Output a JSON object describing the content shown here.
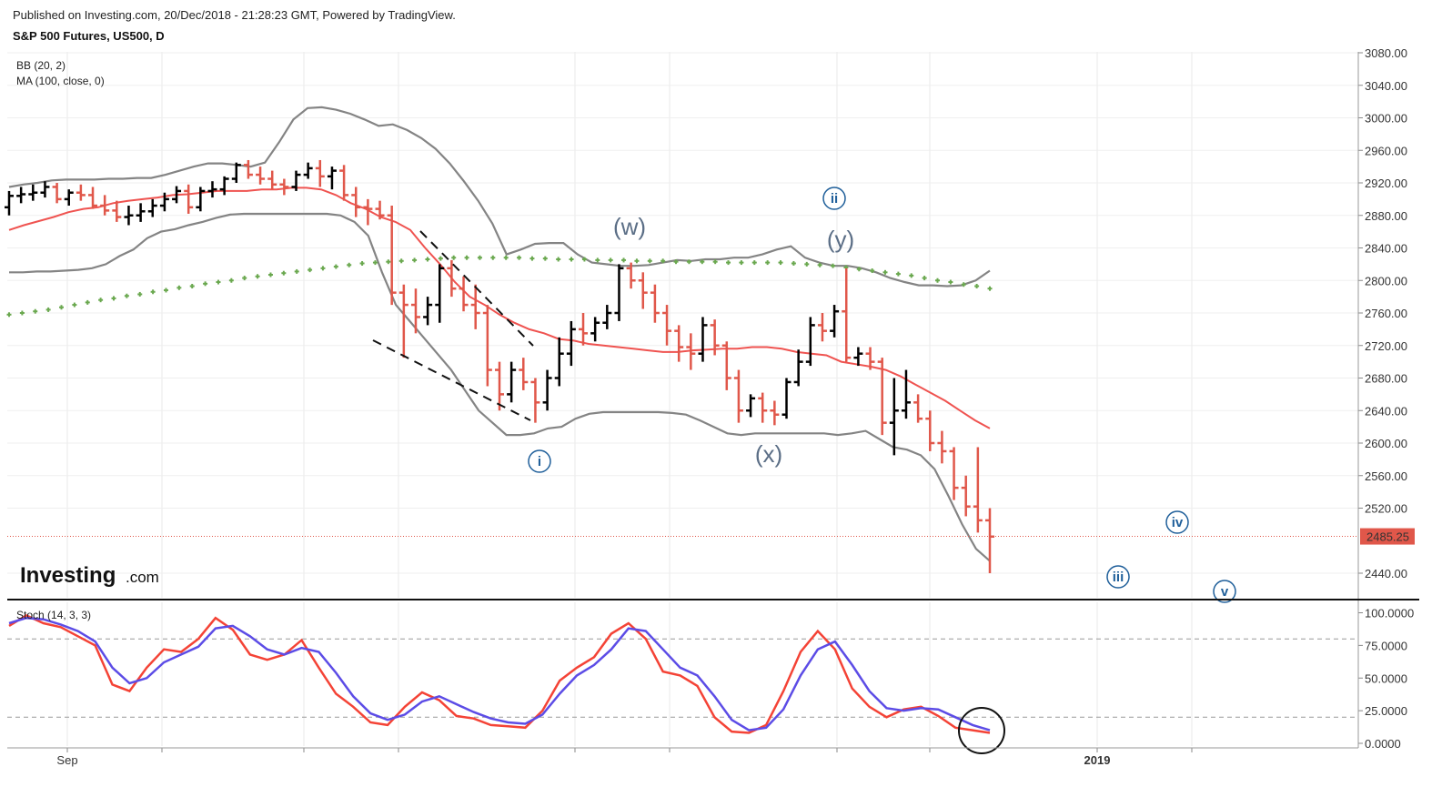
{
  "header": {
    "published": "Published on Investing.com, 20/Dec/2018 - 21:28:23 GMT, Powered by TradingView.",
    "symbol": "S&P 500 Futures, US500, D"
  },
  "legend": {
    "bb": "BB (20, 2)",
    "ma": "MA (100, close, 0)",
    "stoch": "Stoch (14, 3, 3)"
  },
  "logo": {
    "brand": "Investing",
    "suffix": ".com"
  },
  "chart_data": [
    {
      "type": "candlestick",
      "title": "S&P 500 Futures, US500, D",
      "y_ticks": [
        "3080.00",
        "3040.00",
        "3000.00",
        "2960.00",
        "2920.00",
        "2880.00",
        "2840.00",
        "2800.00",
        "2760.00",
        "2720.00",
        "2680.00",
        "2640.00",
        "2600.00",
        "2560.00",
        "2520.00",
        "2440.00"
      ],
      "ylim": [
        2430,
        3080
      ],
      "x_tick_labels": [
        "Sep",
        "2019"
      ],
      "last_price": "2485.25",
      "last_price_value": 2485.25,
      "colors": {
        "up": "#000000",
        "down": "#e0574a",
        "bb": "#848484",
        "ma100": "#6aa84f",
        "basis": "#ef5350",
        "last": "#e0574a"
      },
      "bars": [
        [
          2890,
          2910,
          2880,
          2904
        ],
        [
          2904,
          2915,
          2895,
          2906
        ],
        [
          2906,
          2918,
          2898,
          2908
        ],
        [
          2908,
          2922,
          2902,
          2915
        ],
        [
          2915,
          2920,
          2895,
          2900
        ],
        [
          2900,
          2912,
          2892,
          2908
        ],
        [
          2908,
          2918,
          2898,
          2905
        ],
        [
          2905,
          2915,
          2888,
          2892
        ],
        [
          2892,
          2905,
          2880,
          2886
        ],
        [
          2886,
          2898,
          2872,
          2878
        ],
        [
          2878,
          2892,
          2868,
          2880
        ],
        [
          2880,
          2895,
          2872,
          2885
        ],
        [
          2885,
          2900,
          2878,
          2892
        ],
        [
          2892,
          2908,
          2885,
          2900
        ],
        [
          2900,
          2916,
          2895,
          2910
        ],
        [
          2910,
          2918,
          2882,
          2890
        ],
        [
          2890,
          2915,
          2885,
          2910
        ],
        [
          2910,
          2922,
          2902,
          2912
        ],
        [
          2912,
          2928,
          2905,
          2925
        ],
        [
          2925,
          2945,
          2920,
          2942
        ],
        [
          2942,
          2948,
          2925,
          2930
        ],
        [
          2930,
          2940,
          2918,
          2925
        ],
        [
          2925,
          2935,
          2912,
          2918
        ],
        [
          2918,
          2925,
          2905,
          2915
        ],
        [
          2915,
          2935,
          2910,
          2930
        ],
        [
          2930,
          2945,
          2925,
          2938
        ],
        [
          2938,
          2948,
          2915,
          2928
        ],
        [
          2928,
          2940,
          2912,
          2935
        ],
        [
          2935,
          2942,
          2898,
          2905
        ],
        [
          2905,
          2915,
          2878,
          2890
        ],
        [
          2890,
          2900,
          2868,
          2888
        ],
        [
          2888,
          2898,
          2875,
          2880
        ],
        [
          2880,
          2892,
          2770,
          2785
        ],
        [
          2785,
          2795,
          2705,
          2770
        ],
        [
          2770,
          2790,
          2735,
          2755
        ],
        [
          2755,
          2780,
          2745,
          2770
        ],
        [
          2770,
          2820,
          2748,
          2815
        ],
        [
          2815,
          2825,
          2780,
          2790
        ],
        [
          2790,
          2805,
          2762,
          2770
        ],
        [
          2770,
          2795,
          2740,
          2760
        ],
        [
          2760,
          2770,
          2670,
          2690
        ],
        [
          2690,
          2700,
          2640,
          2660
        ],
        [
          2660,
          2700,
          2650,
          2690
        ],
        [
          2690,
          2705,
          2665,
          2675
        ],
        [
          2675,
          2680,
          2625,
          2650
        ],
        [
          2650,
          2690,
          2640,
          2680
        ],
        [
          2680,
          2730,
          2670,
          2710
        ],
        [
          2710,
          2750,
          2695,
          2740
        ],
        [
          2740,
          2760,
          2720,
          2735
        ],
        [
          2735,
          2755,
          2725,
          2748
        ],
        [
          2748,
          2770,
          2740,
          2760
        ],
        [
          2760,
          2820,
          2750,
          2815
        ],
        [
          2815,
          2822,
          2790,
          2800
        ],
        [
          2800,
          2810,
          2765,
          2785
        ],
        [
          2785,
          2795,
          2748,
          2760
        ],
        [
          2760,
          2770,
          2720,
          2738
        ],
        [
          2738,
          2745,
          2700,
          2718
        ],
        [
          2718,
          2735,
          2690,
          2710
        ],
        [
          2710,
          2755,
          2700,
          2745
        ],
        [
          2745,
          2752,
          2708,
          2720
        ],
        [
          2720,
          2725,
          2665,
          2680
        ],
        [
          2680,
          2690,
          2625,
          2640
        ],
        [
          2640,
          2660,
          2632,
          2655
        ],
        [
          2655,
          2662,
          2625,
          2640
        ],
        [
          2640,
          2652,
          2622,
          2635
        ],
        [
          2635,
          2680,
          2630,
          2675
        ],
        [
          2675,
          2715,
          2670,
          2700
        ],
        [
          2700,
          2755,
          2695,
          2745
        ],
        [
          2745,
          2760,
          2725,
          2738
        ],
        [
          2738,
          2770,
          2730,
          2762
        ],
        [
          2762,
          2815,
          2700,
          2705
        ],
        [
          2705,
          2718,
          2695,
          2710
        ],
        [
          2710,
          2718,
          2690,
          2700
        ],
        [
          2700,
          2705,
          2610,
          2625
        ],
        [
          2625,
          2680,
          2585,
          2640
        ],
        [
          2640,
          2690,
          2630,
          2650
        ],
        [
          2650,
          2660,
          2625,
          2630
        ],
        [
          2630,
          2640,
          2590,
          2600
        ],
        [
          2600,
          2615,
          2575,
          2590
        ],
        [
          2590,
          2595,
          2530,
          2545
        ],
        [
          2545,
          2560,
          2510,
          2522
        ],
        [
          2522,
          2595,
          2490,
          2505
        ],
        [
          2505,
          2520,
          2440,
          2485
        ]
      ],
      "bollinger_upper": [
        2915,
        2918,
        2920,
        2923,
        2924,
        2924,
        2924,
        2925,
        2925,
        2926,
        2926,
        2930,
        2935,
        2940,
        2944,
        2944,
        2942,
        2940,
        2945,
        2970,
        2998,
        3012,
        3013,
        3010,
        3005,
        2998,
        2990,
        2992,
        2985,
        2975,
        2962,
        2944,
        2922,
        2898,
        2870,
        2832,
        2838,
        2845,
        2846,
        2846,
        2832,
        2822,
        2820,
        2818,
        2818,
        2819,
        2822,
        2825,
        2824,
        2826,
        2826,
        2828,
        2828,
        2832,
        2838,
        2842,
        2828,
        2822,
        2818,
        2818,
        2815,
        2810,
        2803,
        2798,
        2794,
        2794,
        2793,
        2794,
        2800,
        2812
      ],
      "bollinger_lower": [
        2810,
        2810,
        2811,
        2811,
        2812,
        2813,
        2815,
        2820,
        2830,
        2838,
        2852,
        2860,
        2863,
        2868,
        2872,
        2877,
        2881,
        2882,
        2882,
        2882,
        2882,
        2882,
        2882,
        2882,
        2880,
        2872,
        2855,
        2810,
        2770,
        2750,
        2730,
        2710,
        2690,
        2665,
        2640,
        2625,
        2610,
        2610,
        2612,
        2618,
        2620,
        2630,
        2636,
        2638,
        2638,
        2638,
        2638,
        2638,
        2637,
        2635,
        2628,
        2620,
        2612,
        2610,
        2612,
        2612,
        2612,
        2612,
        2612,
        2612,
        2610,
        2612,
        2615,
        2605,
        2595,
        2592,
        2585,
        2568,
        2535,
        2500,
        2470,
        2455
      ],
      "bollinger_basis": [
        2862,
        2868,
        2873,
        2878,
        2884,
        2888,
        2890,
        2895,
        2898,
        2900,
        2902,
        2905,
        2906,
        2908,
        2910,
        2910,
        2910,
        2912,
        2912,
        2914,
        2914,
        2912,
        2905,
        2895,
        2888,
        2878,
        2872,
        2862,
        2840,
        2820,
        2798,
        2780,
        2770,
        2758,
        2748,
        2740,
        2735,
        2728,
        2726,
        2722,
        2720,
        2718,
        2716,
        2714,
        2712,
        2712,
        2714,
        2715,
        2716,
        2716,
        2718,
        2718,
        2716,
        2712,
        2710,
        2708,
        2700,
        2697,
        2694,
        2690,
        2682,
        2672,
        2662,
        2652,
        2640,
        2628,
        2618
      ],
      "ma100": [
        2758,
        2760,
        2762,
        2764,
        2767,
        2770,
        2773,
        2776,
        2778,
        2781,
        2783,
        2786,
        2788,
        2791,
        2793,
        2796,
        2798,
        2800,
        2803,
        2805,
        2807,
        2809,
        2811,
        2813,
        2815,
        2817,
        2819,
        2821,
        2822,
        2823,
        2824,
        2825,
        2826,
        2827,
        2828,
        2828,
        2828,
        2828,
        2828,
        2828,
        2827,
        2827,
        2826,
        2826,
        2826,
        2825,
        2825,
        2825,
        2824,
        2824,
        2824,
        2823,
        2823,
        2823,
        2823,
        2822,
        2822,
        2822,
        2822,
        2822,
        2821,
        2820,
        2819,
        2818,
        2816,
        2814,
        2812,
        2810,
        2808,
        2806,
        2803,
        2800,
        2798,
        2795,
        2793,
        2790
      ]
    },
    {
      "type": "line",
      "title": "Stoch (14, 3, 3)",
      "y_ticks": [
        "100.0000",
        "75.0000",
        "50.0000",
        "25.0000",
        "0.0000"
      ],
      "ylim": [
        0,
        100
      ],
      "levels": [
        80,
        20
      ],
      "series": [
        {
          "name": "%K",
          "color": "#f44336",
          "values": [
            90,
            98,
            92,
            89,
            82,
            75,
            45,
            40,
            58,
            72,
            70,
            80,
            96,
            87,
            68,
            64,
            68,
            79,
            58,
            38,
            28,
            16,
            14,
            28,
            39,
            33,
            21,
            19,
            14,
            13,
            12,
            25,
            48,
            58,
            66,
            84,
            92,
            80,
            55,
            52,
            44,
            20,
            9,
            8,
            14,
            40,
            70,
            86,
            72,
            42,
            28,
            20,
            26,
            28,
            21,
            12,
            10,
            8
          ]
        },
        {
          "name": "%D",
          "color": "#5c4ce6",
          "values": [
            92,
            96,
            95,
            91,
            86,
            78,
            58,
            46,
            50,
            62,
            68,
            74,
            88,
            90,
            82,
            72,
            68,
            73,
            70,
            54,
            36,
            23,
            18,
            22,
            32,
            36,
            30,
            24,
            19,
            16,
            15,
            22,
            38,
            52,
            60,
            72,
            88,
            86,
            72,
            58,
            52,
            36,
            18,
            10,
            12,
            26,
            52,
            72,
            78,
            60,
            40,
            27,
            25,
            27,
            26,
            20,
            14,
            10
          ]
        }
      ]
    }
  ],
  "wave_labels": {
    "w": "(w)",
    "x": "(x)",
    "y": "(y)",
    "i": "i",
    "ii": "ii",
    "iii": "iii",
    "iv": "iv",
    "v": "v"
  }
}
